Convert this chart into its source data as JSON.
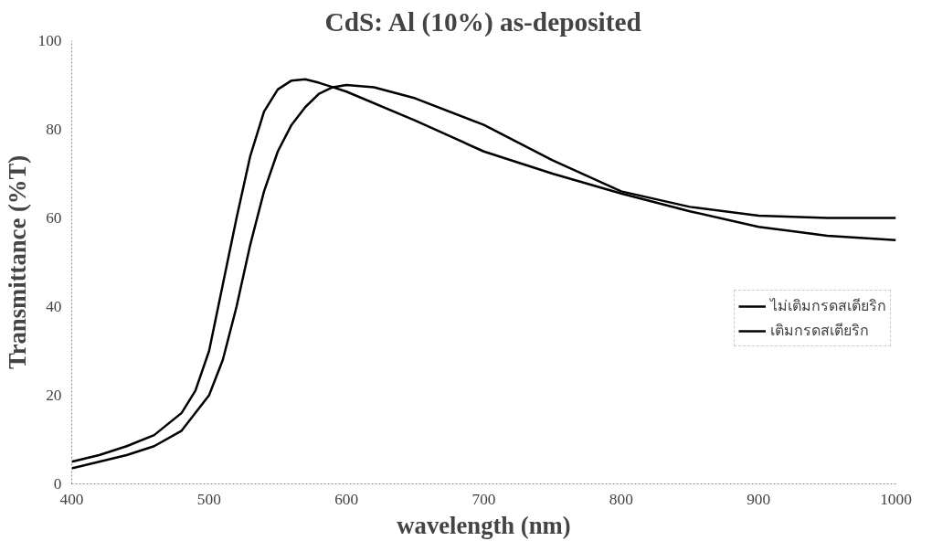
{
  "chart_data": {
    "type": "line",
    "title": "CdS: Al (10%) as-deposited",
    "xlabel": "wavelength (nm)",
    "ylabel": "Transmittance (%T)",
    "xlim": [
      400,
      1000
    ],
    "xticks": [
      400,
      500,
      600,
      700,
      800,
      900,
      1000
    ],
    "ylim": [
      0,
      100
    ],
    "yticks": [
      0,
      20,
      40,
      60,
      80,
      100
    ],
    "grid": false,
    "legend": "right",
    "marker": "none",
    "line_style": "solid",
    "series": [
      {
        "name": "ไม่เติมกรดสเตียริก",
        "color": "#000000",
        "x": [
          400,
          420,
          440,
          460,
          480,
          490,
          500,
          510,
          520,
          530,
          540,
          550,
          560,
          570,
          580,
          590,
          600,
          650,
          700,
          750,
          800,
          850,
          900,
          950,
          1000
        ],
        "values": [
          5,
          6.5,
          8.5,
          11,
          16,
          21,
          30,
          45,
          60,
          74,
          84,
          89,
          91,
          91.3,
          90.5,
          89.5,
          88.5,
          82,
          75,
          70,
          65.5,
          61.5,
          58,
          56,
          55
        ]
      },
      {
        "name": "เติมกรดสเตียริก",
        "color": "#000000",
        "x": [
          400,
          420,
          440,
          460,
          480,
          500,
          510,
          520,
          530,
          540,
          550,
          560,
          570,
          580,
          590,
          600,
          620,
          650,
          700,
          750,
          800,
          850,
          900,
          950,
          1000
        ],
        "values": [
          3.5,
          5,
          6.5,
          8.5,
          12,
          20,
          28,
          40,
          54,
          66,
          75,
          81,
          85,
          88,
          89.5,
          90,
          89.5,
          87,
          81,
          73,
          66,
          62.5,
          60.5,
          60,
          60
        ]
      }
    ]
  }
}
